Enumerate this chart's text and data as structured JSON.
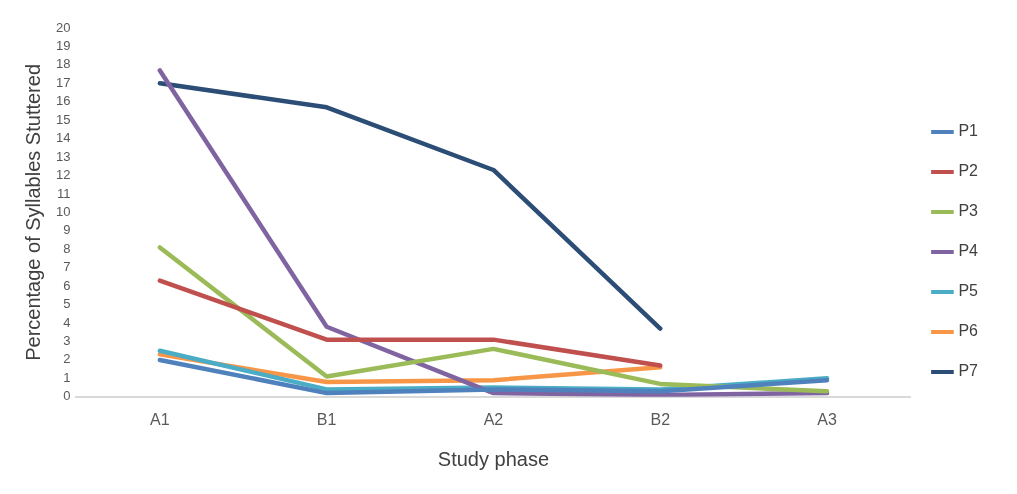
{
  "chart_data": {
    "type": "line",
    "xlabel": "Study phase",
    "ylabel": "Percentage of Syllables Stuttered",
    "categories": [
      "A1",
      "B1",
      "A2",
      "B2",
      "A3"
    ],
    "ylim": [
      0,
      20
    ],
    "yticks": [
      0,
      1,
      2,
      3,
      4,
      5,
      6,
      7,
      8,
      9,
      10,
      11,
      12,
      13,
      14,
      15,
      16,
      17,
      18,
      19,
      20
    ],
    "grid": false,
    "legend": "right",
    "marker": "none",
    "line_style": "solid",
    "series": [
      {
        "name": "P1",
        "color": "#4f81bd",
        "values": [
          2.0,
          0.2,
          0.4,
          0.3,
          0.9
        ]
      },
      {
        "name": "P2",
        "color": "#c0504d",
        "values": [
          6.3,
          3.1,
          3.1,
          1.7,
          null
        ]
      },
      {
        "name": "P3",
        "color": "#9bbb59",
        "values": [
          8.1,
          1.1,
          2.6,
          0.7,
          0.3
        ]
      },
      {
        "name": "P4",
        "color": "#8064a2",
        "values": [
          17.7,
          3.8,
          0.2,
          0.1,
          0.2
        ]
      },
      {
        "name": "P5",
        "color": "#4bacc6",
        "values": [
          2.5,
          0.4,
          0.5,
          0.4,
          1.0
        ]
      },
      {
        "name": "P6",
        "color": "#f79646",
        "values": [
          2.3,
          0.8,
          0.9,
          1.6,
          null
        ]
      },
      {
        "name": "P7",
        "color": "#2c4d75",
        "values": [
          17.0,
          15.7,
          12.3,
          3.7,
          null
        ]
      }
    ]
  }
}
